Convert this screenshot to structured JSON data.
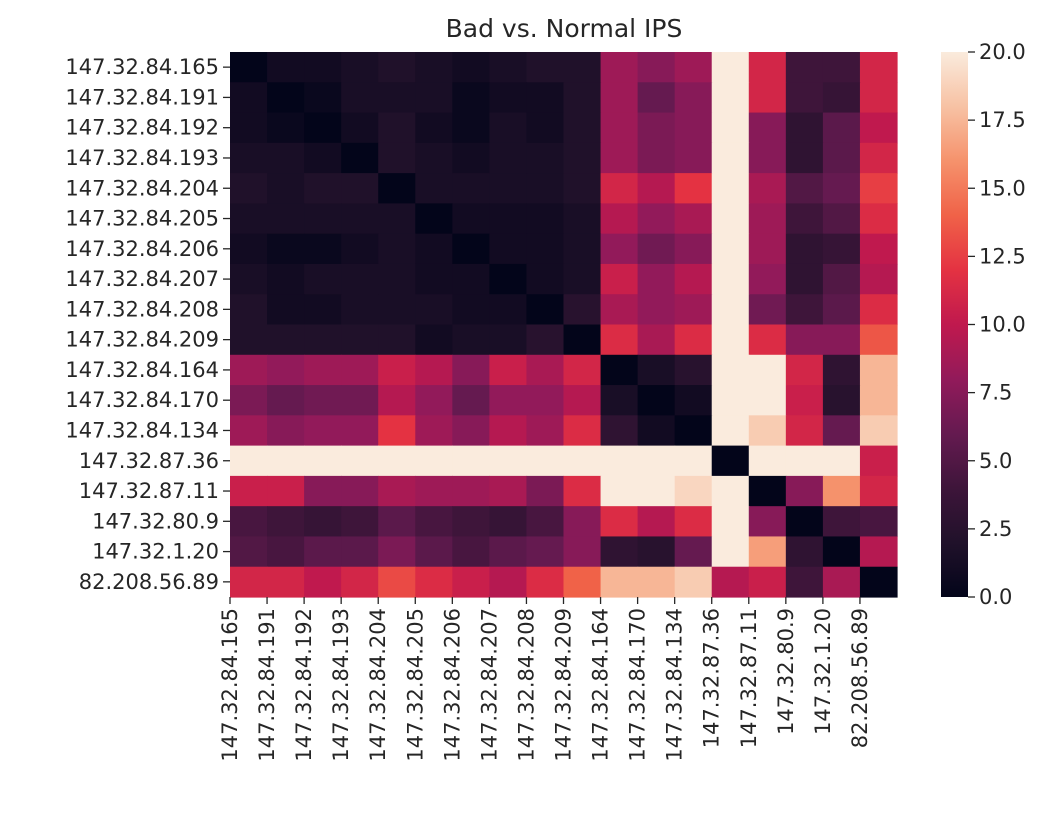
{
  "chart_data": {
    "type": "heatmap",
    "title": "Bad vs. Normal IPS",
    "xlabel": "",
    "ylabel": "",
    "x_labels": [
      "147.32.84.165",
      "147.32.84.191",
      "147.32.84.192",
      "147.32.84.193",
      "147.32.84.204",
      "147.32.84.205",
      "147.32.84.206",
      "147.32.84.207",
      "147.32.84.208",
      "147.32.84.209",
      "147.32.84.164",
      "147.32.84.170",
      "147.32.84.134",
      "147.32.87.36",
      "147.32.87.11",
      "147.32.80.9",
      "147.32.1.20",
      "82.208.56.89"
    ],
    "y_labels": [
      "147.32.84.165",
      "147.32.84.191",
      "147.32.84.192",
      "147.32.84.193",
      "147.32.84.204",
      "147.32.84.205",
      "147.32.84.206",
      "147.32.84.207",
      "147.32.84.208",
      "147.32.84.209",
      "147.32.84.164",
      "147.32.84.170",
      "147.32.84.134",
      "147.32.87.36",
      "147.32.87.11",
      "147.32.80.9",
      "147.32.1.20",
      "82.208.56.89"
    ],
    "values": [
      [
        0.0,
        1.0,
        1.0,
        1.5,
        2.0,
        1.5,
        1.0,
        1.5,
        2.0,
        2.0,
        8.5,
        7.5,
        8.5,
        20,
        11,
        4,
        4,
        11
      ],
      [
        1.0,
        0.0,
        0.5,
        1.5,
        1.5,
        1.5,
        0.5,
        1.0,
        1.0,
        2.0,
        8.5,
        6.0,
        7.5,
        20,
        11,
        4,
        3.5,
        11
      ],
      [
        1.0,
        0.5,
        0.0,
        1.0,
        2.0,
        1.0,
        0.5,
        1.5,
        1.0,
        2.0,
        8.5,
        7.0,
        7.5,
        20,
        7.5,
        3,
        5.5,
        10
      ],
      [
        1.5,
        1.5,
        1.0,
        0.0,
        2.0,
        1.5,
        1.0,
        1.5,
        1.5,
        2.0,
        8.5,
        7.0,
        7.5,
        20,
        7.5,
        3,
        5.5,
        11
      ],
      [
        2.0,
        1.5,
        2.0,
        2.0,
        0.0,
        1.5,
        1.5,
        1.5,
        1.5,
        2.0,
        11,
        9.5,
        12,
        20,
        9,
        5,
        6,
        12.5
      ],
      [
        1.5,
        1.5,
        1.5,
        1.5,
        1.5,
        0.0,
        1.0,
        1.0,
        1.0,
        1.5,
        9.5,
        8.0,
        9.0,
        20,
        8.5,
        4,
        5,
        11.5
      ],
      [
        1.0,
        0.5,
        0.5,
        1.0,
        1.5,
        1.0,
        0.0,
        1.0,
        1.0,
        1.5,
        8.0,
        6.5,
        7.5,
        20,
        8.5,
        3,
        3.5,
        10
      ],
      [
        1.5,
        1.0,
        1.5,
        1.5,
        1.5,
        1.0,
        1.0,
        0.0,
        1.0,
        1.5,
        10.5,
        8.0,
        9.5,
        20,
        8,
        3,
        5,
        9.5
      ],
      [
        2.0,
        1.0,
        1.0,
        1.5,
        1.5,
        1.5,
        1.0,
        1.0,
        0.0,
        2.5,
        9.0,
        8.0,
        8.5,
        20,
        6.5,
        4,
        5.5,
        11.5
      ],
      [
        2.0,
        2.0,
        2.0,
        2.0,
        2.0,
        1.0,
        1.5,
        1.5,
        2.5,
        0.0,
        11.5,
        9.0,
        11.5,
        20,
        11.5,
        7.5,
        7.5,
        13.5
      ],
      [
        8.5,
        8.0,
        8.5,
        8.5,
        10.5,
        9.5,
        7.5,
        10.5,
        9.0,
        11,
        0.0,
        1.5,
        2.5,
        20,
        20,
        11,
        3,
        17.5
      ],
      [
        7.0,
        6.0,
        6.5,
        6.5,
        9.5,
        8.0,
        6.0,
        8.0,
        8.0,
        9.5,
        1.5,
        0.0,
        1.0,
        20,
        20,
        10.5,
        2.5,
        17.5
      ],
      [
        8.5,
        7.5,
        8.0,
        8.0,
        12,
        8.5,
        7.5,
        9.5,
        8.5,
        11.5,
        3.0,
        1.0,
        0.0,
        20,
        18.5,
        11,
        6,
        18.5
      ],
      [
        20,
        20,
        20,
        20,
        20,
        20,
        20,
        20,
        20,
        20,
        20,
        20,
        20,
        0.0,
        20,
        20,
        20,
        10.5
      ],
      [
        10.5,
        10.5,
        7.5,
        7.5,
        9.0,
        8.5,
        8.5,
        9.0,
        7.0,
        11.5,
        20,
        20,
        19,
        20,
        0.0,
        7.5,
        16,
        11
      ],
      [
        4.5,
        4.0,
        3.5,
        4.0,
        5.5,
        4.5,
        4.0,
        3.5,
        4.5,
        7.5,
        11.5,
        9.5,
        11.5,
        20,
        7.5,
        0.0,
        4,
        4.5
      ],
      [
        5.0,
        4.5,
        5.5,
        5.5,
        7.0,
        5.5,
        4.5,
        5.5,
        6.0,
        7.5,
        3.0,
        2.5,
        6.0,
        20,
        16.5,
        3,
        0.0,
        9.5
      ],
      [
        11,
        11,
        10,
        11,
        13,
        11.5,
        10.5,
        9.5,
        11.5,
        14,
        17.5,
        17.5,
        18.5,
        9.5,
        10.5,
        4,
        9,
        0.0
      ]
    ],
    "vmin": 0.0,
    "vmax": 20.0,
    "colorbar_ticks": [
      "0.0",
      "2.5",
      "5.0",
      "7.5",
      "10.0",
      "12.5",
      "15.0",
      "17.5",
      "20.0"
    ],
    "colormap": "rocket",
    "grid": false,
    "legend": "colorbar-right"
  }
}
